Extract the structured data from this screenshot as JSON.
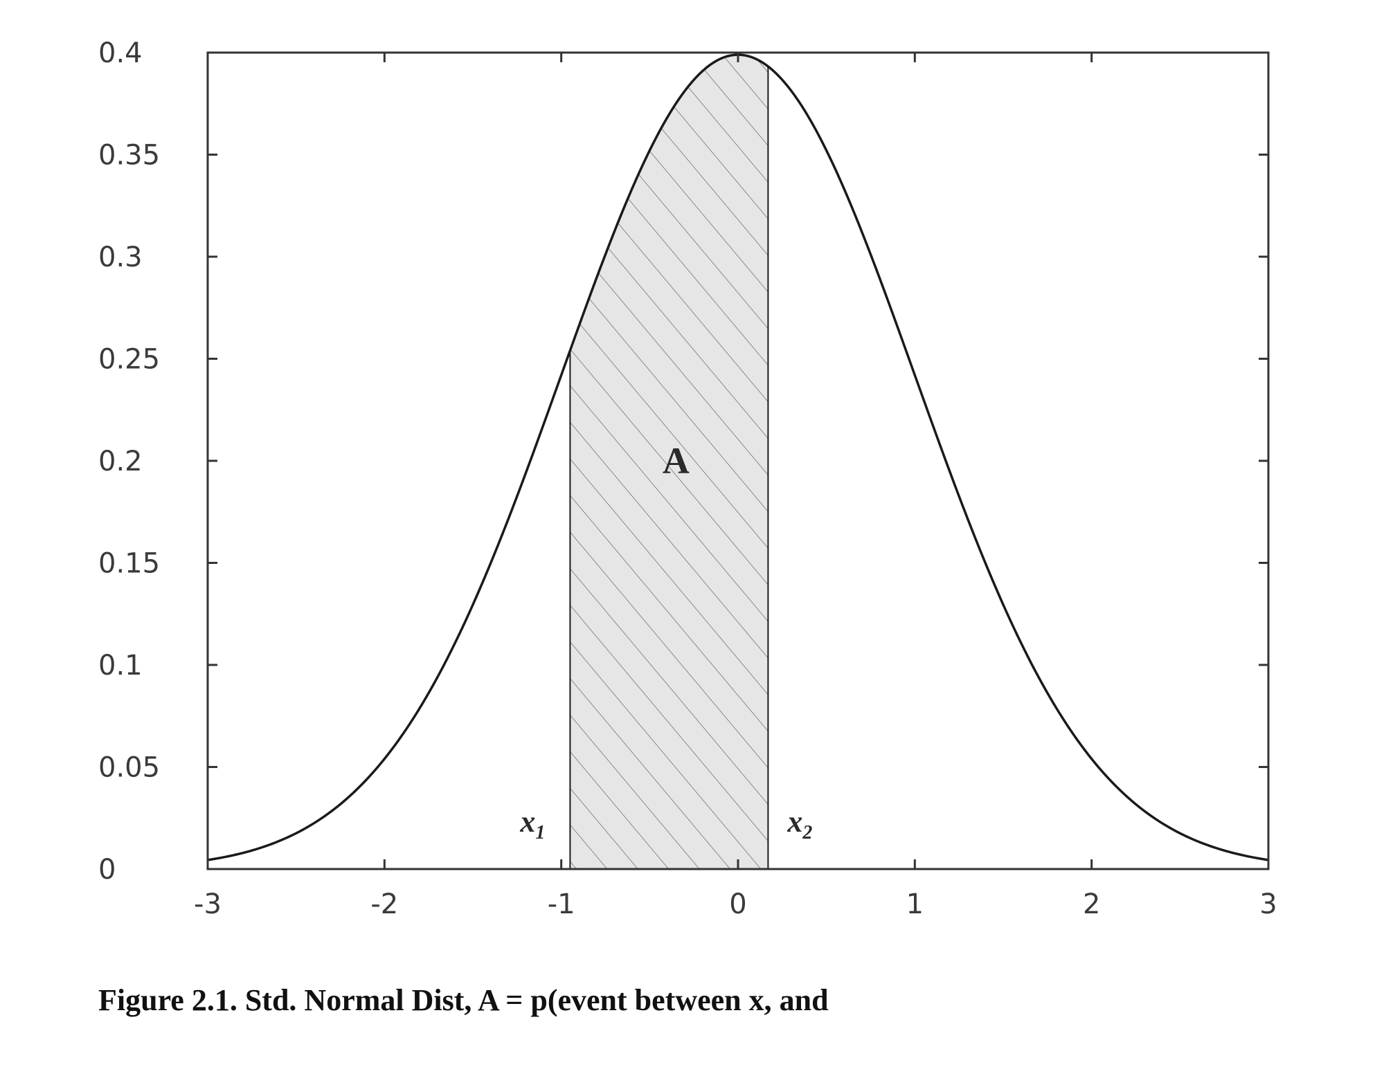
{
  "caption": "Figure 2.1. Std. Normal Dist, A = p(event between x, and",
  "chart_data": {
    "type": "area",
    "title": "",
    "xlabel": "",
    "ylabel": "",
    "xlim": [
      -3,
      3
    ],
    "ylim": [
      0,
      0.4
    ],
    "x_ticks": [
      "-3",
      "-2",
      "-1",
      "0",
      "1",
      "2",
      "3"
    ],
    "y_ticks": [
      "0",
      "0.05",
      "0.1",
      "0.15",
      "0.2",
      "0.25",
      "0.3",
      "0.35",
      "0.4"
    ],
    "grid": false,
    "legend": "none",
    "curve": {
      "x": [
        -3,
        -2.75,
        -2.5,
        -2.25,
        -2,
        -1.75,
        -1.5,
        -1.25,
        -1,
        -0.75,
        -0.5,
        -0.25,
        0,
        0.25,
        0.5,
        0.75,
        1,
        1.25,
        1.5,
        1.75,
        2,
        2.25,
        2.5,
        2.75,
        3
      ],
      "y": [
        0.0044,
        0.0091,
        0.0175,
        0.0317,
        0.054,
        0.0863,
        0.1295,
        0.1826,
        0.242,
        0.3011,
        0.3521,
        0.3867,
        0.3989,
        0.3867,
        0.3521,
        0.3011,
        0.242,
        0.1826,
        0.1295,
        0.0863,
        0.054,
        0.0317,
        0.0175,
        0.0091,
        0.0044
      ]
    },
    "shaded_region": {
      "x1": -0.95,
      "x2": 0.17,
      "label": "A"
    },
    "annotations": [
      {
        "text": "x",
        "sub": "1"
      },
      {
        "text": "x",
        "sub": "2"
      }
    ],
    "colors": {
      "curve": "#1a1a1a",
      "fill": "#e6e6e6",
      "hatch": "#8a8a8a",
      "axes": "#333333"
    }
  }
}
